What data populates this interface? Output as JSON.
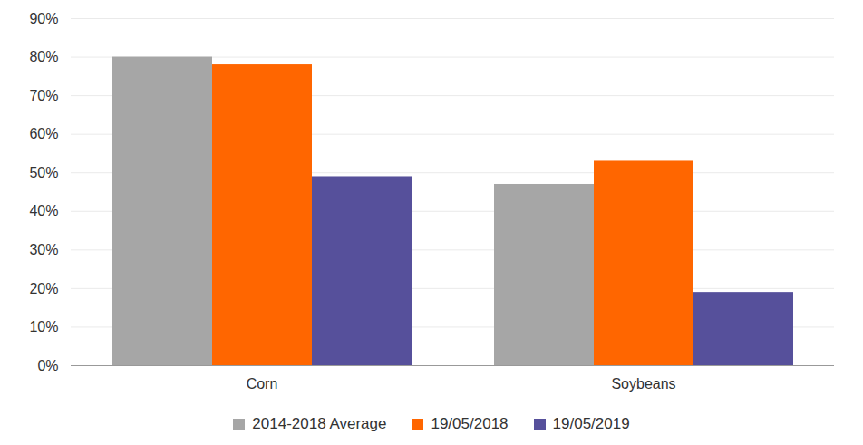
{
  "chart_data": {
    "type": "bar",
    "categories": [
      "Corn",
      "Soybeans"
    ],
    "series": [
      {
        "name": "2014-2018 Average",
        "color": "#a6a6a6",
        "values": [
          80,
          47
        ]
      },
      {
        "name": "19/05/2018",
        "color": "#ff6600",
        "values": [
          78,
          53
        ]
      },
      {
        "name": "19/05/2019",
        "color": "#56509b",
        "values": [
          49,
          19
        ]
      }
    ],
    "ylim": [
      0,
      90
    ],
    "yticks": [
      {
        "value": 0,
        "label": "0%"
      },
      {
        "value": 10,
        "label": "10%"
      },
      {
        "value": 20,
        "label": "20%"
      },
      {
        "value": 30,
        "label": "30%"
      },
      {
        "value": 40,
        "label": "40%"
      },
      {
        "value": 50,
        "label": "50%"
      },
      {
        "value": 60,
        "label": "60%"
      },
      {
        "value": 70,
        "label": "70%"
      },
      {
        "value": 80,
        "label": "80%"
      },
      {
        "value": 90,
        "label": "90%"
      }
    ],
    "grid": true,
    "legend": "bottom"
  }
}
